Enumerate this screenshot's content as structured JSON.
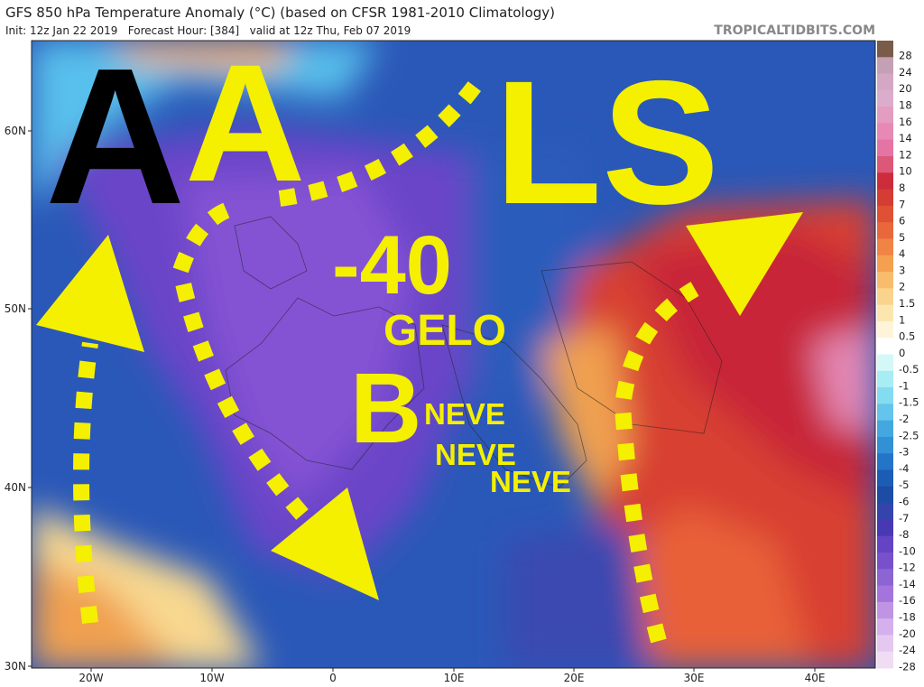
{
  "header": {
    "title": "GFS 850 hPa Temperature Anomaly (°C) (based on CFSR 1981-2010 Climatology)",
    "subtitle": "Init: 12z Jan 22 2019   Forecast Hour: [384]   valid at 12z Thu, Feb 07 2019",
    "site": "TROPICALTIDBITS.COM"
  },
  "map": {
    "lat_labels": [
      "60N",
      "50N",
      "40N",
      "30N"
    ],
    "lon_labels": [
      "20W",
      "10W",
      "0",
      "10E",
      "20E",
      "30E",
      "40E"
    ]
  },
  "colorbar": {
    "labels": [
      "28",
      "24",
      "20",
      "18",
      "16",
      "14",
      "12",
      "10",
      "8",
      "7",
      "6",
      "5",
      "4",
      "3",
      "2",
      "1.5",
      "1",
      "0.5",
      "0",
      "-0.5",
      "-1",
      "-1.5",
      "-2",
      "-2.5",
      "-3",
      "-4",
      "-5",
      "-6",
      "-7",
      "-8",
      "-10",
      "-12",
      "-14",
      "-16",
      "-18",
      "-20",
      "-24",
      "-28"
    ],
    "colors": [
      "#7a5a48",
      "#c4a0b4",
      "#d4a8c4",
      "#dcaccc",
      "#e49cc0",
      "#e888b4",
      "#e474a4",
      "#dc5878",
      "#cc2c3c",
      "#d43c34",
      "#e05034",
      "#e8683c",
      "#f08444",
      "#f4a050",
      "#f8bc6c",
      "#fad48c",
      "#fce6b0",
      "#fff4d8",
      "#ffffff",
      "#d4f8f8",
      "#a8ecf4",
      "#84dcf0",
      "#64c4ec",
      "#44a8e0",
      "#3490d4",
      "#2474c8",
      "#1c5cb4",
      "#1c4ca4",
      "#3444ac",
      "#4838b4",
      "#6444c4",
      "#7850cc",
      "#8c64d4",
      "#a474dc",
      "#c094e4",
      "#d4b0ec",
      "#e4c8f0",
      "#f0dcf4"
    ]
  },
  "annotations": {
    "black_a": "A",
    "yellow_a": "A",
    "ls": "LS",
    "minus40": "-40",
    "gelo": "GELO",
    "b": "B",
    "neve1": "NEVE",
    "neve2": "NEVE",
    "neve3": "NEVE"
  }
}
